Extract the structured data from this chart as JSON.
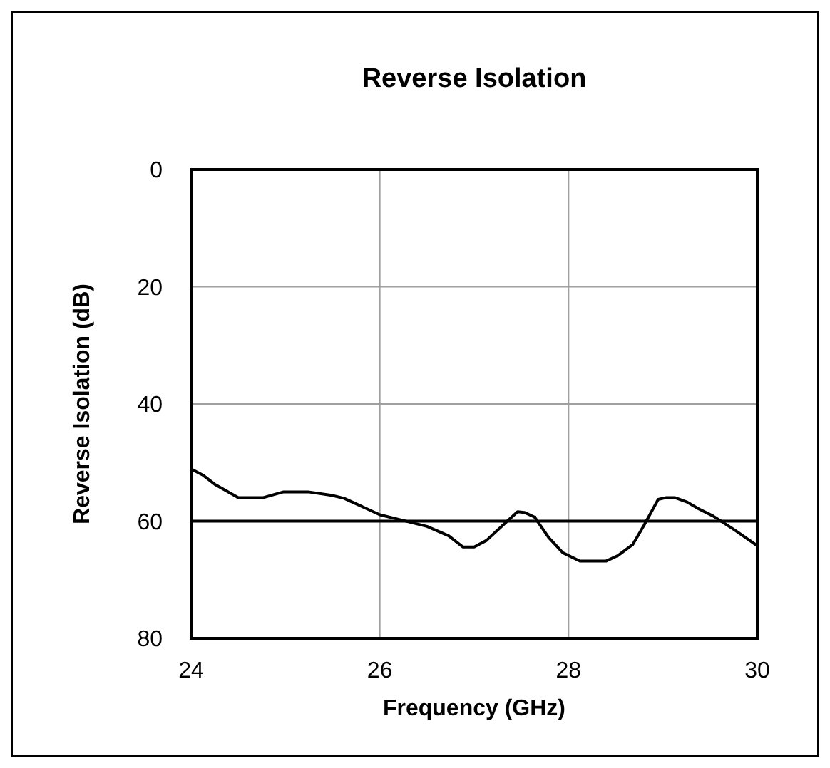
{
  "chart_data": {
    "type": "line",
    "title": "Reverse Isolation",
    "xlabel": "Frequency (GHz)",
    "ylabel": "Reverse Isolation (dB)",
    "xlim": [
      24,
      30
    ],
    "xticks": [
      24,
      26,
      28,
      30
    ],
    "ylim": [
      80,
      0
    ],
    "yticks": [
      0,
      20,
      40,
      60,
      80
    ],
    "grid": true,
    "marker": "none",
    "line_style": "solid",
    "ref_lines": [
      {
        "axis": "y",
        "value": 60,
        "color": "#000000"
      }
    ],
    "series": [
      {
        "color": "#000000",
        "x": [
          24,
          24.13,
          24.25,
          24.5,
          24.76,
          24.98,
          25.24,
          25.49,
          25.62,
          26,
          26.25,
          26.5,
          26.73,
          26.88,
          27,
          27.13,
          27.33,
          27.46,
          27.53,
          27.64,
          27.79,
          27.94,
          28.12,
          28.4,
          28.52,
          28.68,
          28.8,
          28.95,
          29.03,
          29.13,
          29.25,
          29.38,
          29.53,
          29.76,
          30
        ],
        "values": [
          51.1,
          52.2,
          53.7,
          56,
          56,
          55,
          55,
          55.6,
          56.1,
          58.9,
          59.9,
          60.9,
          62.5,
          64.4,
          64.4,
          63.3,
          60.3,
          58.4,
          58.5,
          59.3,
          62.8,
          65.4,
          66.8,
          66.8,
          65.9,
          64,
          60.7,
          56.3,
          56,
          56,
          56.7,
          57.9,
          59.1,
          61.5,
          64.2
        ]
      }
    ]
  }
}
